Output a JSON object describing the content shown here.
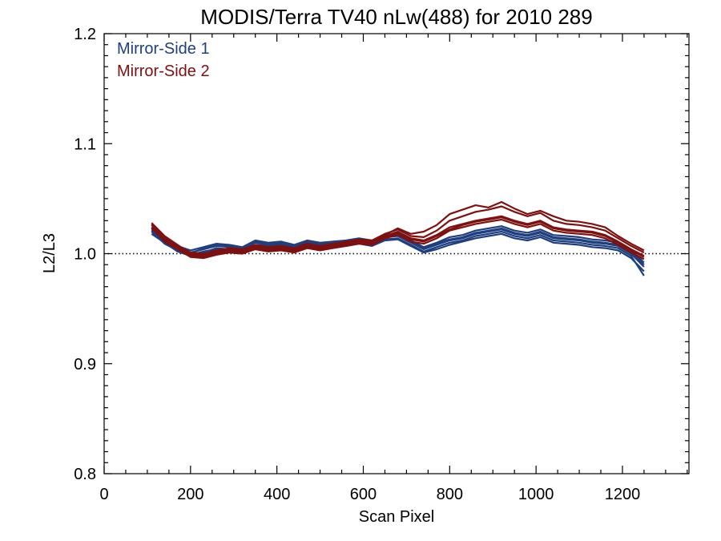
{
  "chart_data": {
    "type": "line",
    "title": "MODIS/Terra TV40 nLw(488) for 2010 289",
    "xlabel": "Scan Pixel",
    "ylabel": "L2/L3",
    "xlim": [
      0,
      1354
    ],
    "ylim": [
      0.8,
      1.2
    ],
    "x_ticks": [
      0,
      200,
      400,
      600,
      800,
      1000,
      1200
    ],
    "x_tick_labels": [
      "0",
      "200",
      "400",
      "600",
      "800",
      "1000",
      "1200"
    ],
    "y_ticks": [
      0.8,
      0.9,
      1.0,
      1.1,
      1.2
    ],
    "y_tick_labels": [
      "0.8",
      "0.9",
      "1.0",
      "1.1",
      "1.2"
    ],
    "reference_line": 1.0,
    "legend_position": "top-left",
    "colors": {
      "mirror_side_1": "#1f3f7f",
      "mirror_side_2": "#7f1010"
    },
    "x": [
      110,
      140,
      170,
      200,
      230,
      260,
      290,
      320,
      350,
      380,
      410,
      440,
      470,
      500,
      530,
      560,
      590,
      620,
      650,
      680,
      710,
      740,
      770,
      800,
      830,
      860,
      890,
      920,
      950,
      980,
      1010,
      1040,
      1070,
      1100,
      1130,
      1160,
      1190,
      1220,
      1250
    ],
    "series": [
      {
        "name": "Mirror-Side 1",
        "group": 1,
        "values": [
          1.022,
          1.012,
          1.005,
          1.001,
          1.004,
          1.007,
          1.006,
          1.004,
          1.01,
          1.008,
          1.009,
          1.006,
          1.01,
          1.008,
          1.009,
          1.01,
          1.012,
          1.01,
          1.015,
          1.016,
          1.01,
          1.004,
          1.008,
          1.012,
          1.014,
          1.018,
          1.02,
          1.022,
          1.018,
          1.016,
          1.019,
          1.014,
          1.013,
          1.012,
          1.01,
          1.009,
          1.007,
          1.0,
          0.988
        ]
      },
      {
        "name": "Mirror-Side 1",
        "group": 1,
        "values": [
          1.02,
          1.009,
          1.003,
          0.999,
          1.002,
          1.004,
          1.003,
          1.002,
          1.007,
          1.005,
          1.006,
          1.004,
          1.007,
          1.005,
          1.006,
          1.007,
          1.009,
          1.007,
          1.012,
          1.013,
          1.007,
          1.001,
          1.004,
          1.008,
          1.011,
          1.014,
          1.016,
          1.018,
          1.014,
          1.012,
          1.015,
          1.01,
          1.009,
          1.008,
          1.006,
          1.005,
          1.003,
          0.996,
          0.984
        ]
      },
      {
        "name": "Mirror-Side 1",
        "group": 1,
        "values": [
          1.024,
          1.014,
          1.007,
          1.003,
          1.006,
          1.009,
          1.008,
          1.006,
          1.012,
          1.01,
          1.011,
          1.008,
          1.012,
          1.01,
          1.011,
          1.012,
          1.014,
          1.012,
          1.017,
          1.018,
          1.012,
          1.006,
          1.01,
          1.015,
          1.017,
          1.021,
          1.023,
          1.025,
          1.021,
          1.019,
          1.022,
          1.017,
          1.016,
          1.015,
          1.013,
          1.012,
          1.01,
          1.003,
          0.992
        ]
      },
      {
        "name": "Mirror-Side 1",
        "group": 1,
        "values": [
          1.018,
          1.01,
          1.002,
          0.998,
          1.001,
          1.005,
          1.004,
          1.003,
          1.008,
          1.007,
          1.008,
          1.005,
          1.008,
          1.006,
          1.007,
          1.008,
          1.01,
          1.008,
          1.013,
          1.014,
          1.008,
          1.002,
          1.006,
          1.01,
          1.012,
          1.016,
          1.018,
          1.02,
          1.016,
          1.014,
          1.017,
          1.012,
          1.011,
          1.01,
          1.008,
          1.007,
          1.005,
          0.998,
          0.98
        ]
      },
      {
        "name": "Mirror-Side 1",
        "group": 1,
        "values": [
          1.021,
          1.011,
          1.004,
          1.0,
          1.005,
          1.008,
          1.007,
          1.005,
          1.011,
          1.009,
          1.01,
          1.007,
          1.011,
          1.009,
          1.01,
          1.011,
          1.013,
          1.011,
          1.016,
          1.017,
          1.011,
          1.005,
          1.009,
          1.013,
          1.015,
          1.019,
          1.021,
          1.023,
          1.019,
          1.017,
          1.02,
          1.015,
          1.014,
          1.013,
          1.011,
          1.01,
          1.008,
          1.001,
          0.99
        ]
      },
      {
        "name": "Mirror-Side 2",
        "group": 2,
        "values": [
          1.026,
          1.013,
          1.006,
          0.999,
          0.998,
          1.001,
          1.003,
          1.002,
          1.006,
          1.004,
          1.005,
          1.003,
          1.007,
          1.005,
          1.007,
          1.009,
          1.011,
          1.01,
          1.016,
          1.02,
          1.014,
          1.012,
          1.017,
          1.024,
          1.027,
          1.03,
          1.032,
          1.034,
          1.03,
          1.027,
          1.03,
          1.024,
          1.022,
          1.021,
          1.02,
          1.017,
          1.011,
          1.004,
          0.998
        ]
      },
      {
        "name": "Mirror-Side 2",
        "group": 2,
        "values": [
          1.024,
          1.011,
          1.004,
          0.997,
          0.996,
          0.999,
          1.001,
          1.0,
          1.004,
          1.002,
          1.003,
          1.001,
          1.005,
          1.003,
          1.005,
          1.007,
          1.009,
          1.008,
          1.014,
          1.017,
          1.011,
          1.009,
          1.014,
          1.021,
          1.024,
          1.027,
          1.029,
          1.031,
          1.027,
          1.024,
          1.027,
          1.021,
          1.019,
          1.018,
          1.017,
          1.014,
          1.008,
          1.001,
          0.995
        ]
      },
      {
        "name": "Mirror-Side 2",
        "group": 2,
        "values": [
          1.027,
          1.015,
          1.007,
          1.001,
          1.0,
          1.003,
          1.005,
          1.004,
          1.008,
          1.006,
          1.007,
          1.005,
          1.009,
          1.007,
          1.009,
          1.011,
          1.013,
          1.012,
          1.018,
          1.022,
          1.016,
          1.015,
          1.021,
          1.03,
          1.034,
          1.038,
          1.04,
          1.043,
          1.038,
          1.034,
          1.037,
          1.03,
          1.027,
          1.026,
          1.024,
          1.021,
          1.014,
          1.007,
          1.001
        ]
      },
      {
        "name": "Mirror-Side 2",
        "group": 2,
        "values": [
          1.023,
          1.012,
          1.005,
          0.998,
          0.997,
          1.0,
          1.002,
          1.001,
          1.005,
          1.003,
          1.004,
          1.002,
          1.006,
          1.004,
          1.006,
          1.008,
          1.01,
          1.009,
          1.015,
          1.019,
          1.013,
          1.011,
          1.016,
          1.022,
          1.026,
          1.029,
          1.031,
          1.033,
          1.029,
          1.026,
          1.029,
          1.023,
          1.021,
          1.02,
          1.019,
          1.016,
          1.01,
          1.003,
          0.997
        ]
      },
      {
        "name": "Mirror-Side 2",
        "group": 2,
        "values": [
          1.028,
          1.016,
          1.008,
          1.0,
          0.999,
          1.002,
          1.004,
          1.003,
          1.007,
          1.005,
          1.006,
          1.004,
          1.008,
          1.006,
          1.008,
          1.01,
          1.012,
          1.011,
          1.017,
          1.023,
          1.018,
          1.02,
          1.026,
          1.036,
          1.04,
          1.044,
          1.042,
          1.047,
          1.041,
          1.036,
          1.039,
          1.034,
          1.03,
          1.029,
          1.027,
          1.024,
          1.016,
          1.009,
          1.003
        ]
      }
    ]
  }
}
